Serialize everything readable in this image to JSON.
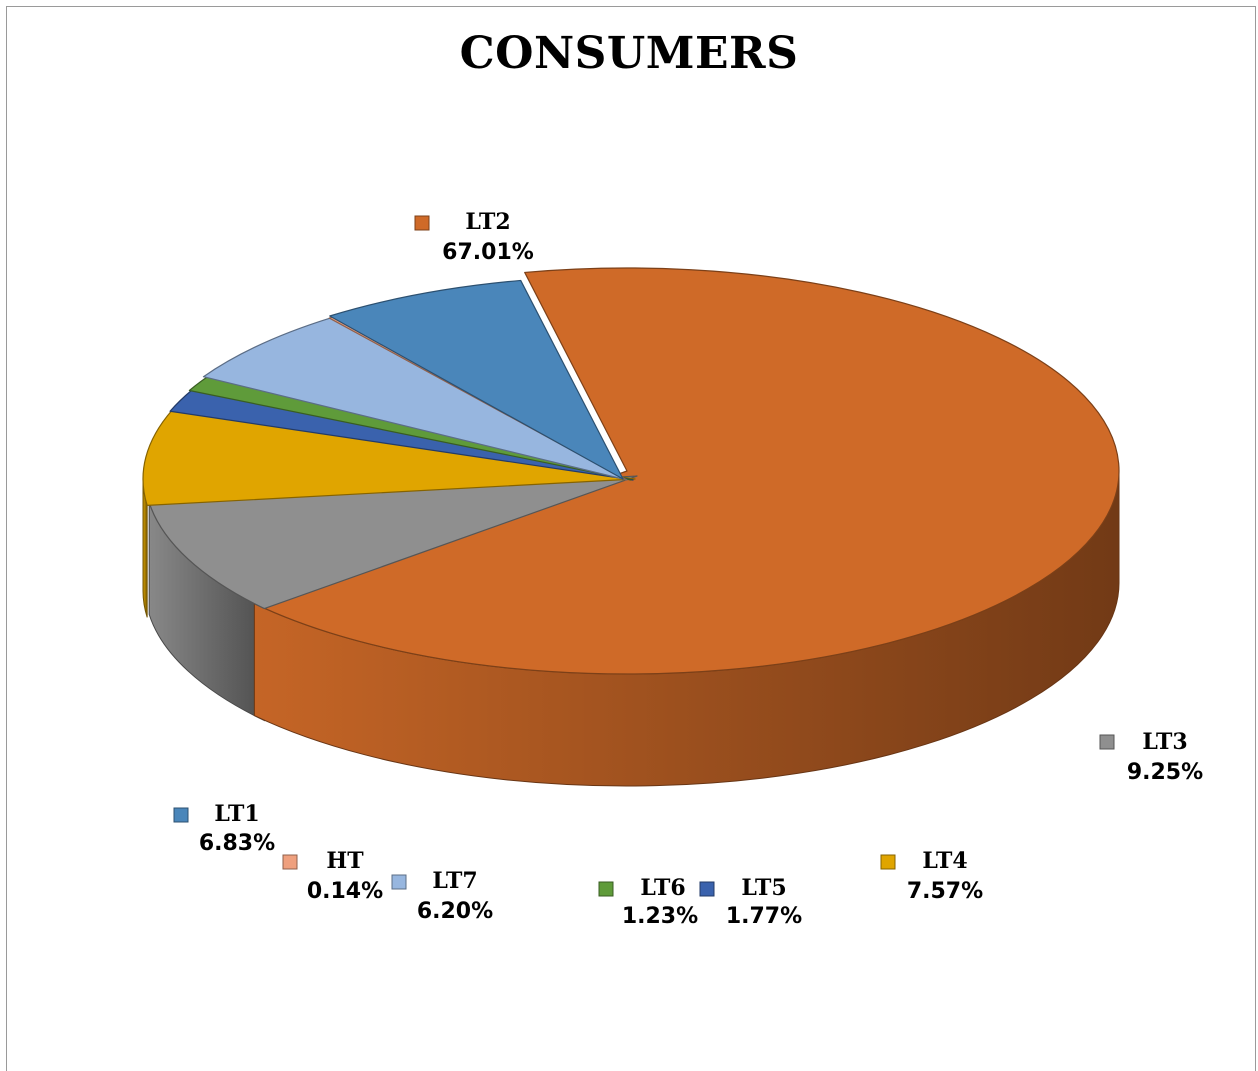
{
  "chart_data": {
    "type": "pie",
    "title": "CONSUMERS",
    "categories": [
      "LT2",
      "LT3",
      "LT4",
      "LT5",
      "LT6",
      "LT7",
      "HT",
      "LT1"
    ],
    "values": [
      67.01,
      9.25,
      7.57,
      1.77,
      1.23,
      6.2,
      0.14,
      6.83
    ],
    "value_labels": [
      "67.01%",
      "9.25%",
      "7.57%",
      "1.77%",
      "1.23%",
      "6.20%",
      "0.14%",
      "6.83%"
    ],
    "unit": "%",
    "colors": [
      "#CF6A28",
      "#8F8F8F",
      "#E0A500",
      "#3A62AD",
      "#5F9B3A",
      "#97B6DF",
      "#EFA07E",
      "#4A86BA"
    ],
    "style": "3d-exploded",
    "legend": "data-labels-with-legend-keys"
  }
}
